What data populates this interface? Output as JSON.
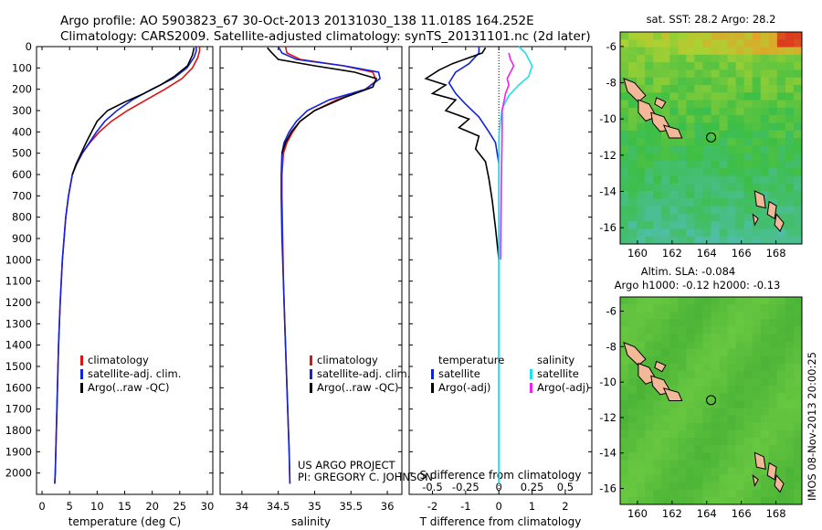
{
  "header": {
    "line1": "Argo profile: AO 5903823_67 30-Oct-2013 20131030_138 11.018S 164.252E",
    "line2": "Climatology: CARS2009. Satellite-adjusted climatology: synTS_20131101.nc (2d later)"
  },
  "colors": {
    "climatology": "#dd1111",
    "satellite": "#1122dd",
    "argo": "#000000",
    "sat_salinity": "#22ddee",
    "argo_salinity": "#ee22ee"
  },
  "chart_data": [
    {
      "type": "line",
      "name": "temperature-panel",
      "xlabel": "temperature (deg C)",
      "xlim": [
        -1,
        31
      ],
      "ylim": [
        2100,
        0
      ],
      "xticks": [
        "0",
        "5",
        "10",
        "15",
        "20",
        "25",
        "30"
      ],
      "yticks": [
        "0",
        "100",
        "200",
        "300",
        "400",
        "500",
        "600",
        "700",
        "800",
        "900",
        "1000",
        "1100",
        "1200",
        "1300",
        "1400",
        "1500",
        "1600",
        "1700",
        "1800",
        "1900",
        "2000"
      ],
      "legend": [
        "climatology",
        "satellite-adj. clim.",
        "Argo(..raw -QC)"
      ],
      "legend_position": "lower-right",
      "series": [
        {
          "name": "climatology",
          "color": "#dd1111",
          "x": [
            28.6,
            28.6,
            28.3,
            27.3,
            25.4,
            22.3,
            18.9,
            15.5,
            12.6,
            10.4,
            8.7,
            7.3,
            6.3,
            5.5,
            4.8,
            4.3,
            3.7,
            3.3,
            3.0,
            2.8,
            2.6,
            2.5,
            2.4,
            2.3
          ],
          "y": [
            0,
            20,
            50,
            100,
            150,
            200,
            250,
            300,
            350,
            400,
            450,
            500,
            550,
            600,
            700,
            800,
            1000,
            1200,
            1400,
            1600,
            1800,
            1900,
            2000,
            2050
          ]
        },
        {
          "name": "satellite-adj. clim.",
          "color": "#1122dd",
          "x": [
            28.0,
            28.0,
            27.6,
            26.3,
            23.8,
            19.9,
            16.4,
            13.6,
            11.4,
            9.9,
            8.6,
            7.3,
            6.3,
            5.5,
            4.8,
            4.3,
            3.7,
            3.3,
            3.0,
            2.8,
            2.6,
            2.5,
            2.4,
            2.3
          ],
          "y": [
            0,
            20,
            50,
            100,
            150,
            200,
            250,
            300,
            350,
            400,
            450,
            500,
            550,
            600,
            700,
            800,
            1000,
            1200,
            1400,
            1600,
            1800,
            1900,
            2000,
            2050
          ]
        },
        {
          "name": "Argo(..raw -QC)",
          "color": "#000000",
          "x": [
            27.6,
            27.3,
            26.4,
            24.0,
            21.5,
            18.5,
            15.0,
            11.9,
            10.0,
            9.0,
            8.0,
            7.1,
            6.2,
            5.5
          ],
          "y": [
            5,
            40,
            90,
            140,
            180,
            220,
            260,
            300,
            350,
            400,
            450,
            500,
            550,
            600
          ]
        }
      ]
    },
    {
      "type": "line",
      "name": "salinity-panel",
      "xlabel": "salinity",
      "xlim": [
        33.7,
        36.2
      ],
      "ylim": [
        2100,
        0
      ],
      "xticks": [
        "34",
        "34.5",
        "35",
        "35.5",
        "36"
      ],
      "legend": [
        "climatology",
        "satellite-adj. clim.",
        "Argo(..raw -QC)"
      ],
      "legend_position": "lower-right",
      "annotation": [
        "US ARGO PROJECT",
        "PI: GREGORY C. JOHNSON"
      ],
      "series": [
        {
          "name": "climatology",
          "color": "#dd1111",
          "x": [
            34.6,
            34.62,
            34.8,
            35.4,
            35.8,
            35.85,
            35.7,
            35.3,
            35.0,
            34.8,
            34.7,
            34.62,
            34.57,
            34.55,
            34.55,
            34.56,
            34.57,
            34.59,
            34.61,
            34.63,
            34.65,
            34.66
          ],
          "y": [
            0,
            30,
            60,
            90,
            120,
            160,
            200,
            250,
            300,
            350,
            400,
            450,
            500,
            600,
            700,
            900,
            1100,
            1300,
            1500,
            1700,
            1900,
            2050
          ]
        },
        {
          "name": "satellite-adj. clim.",
          "color": "#1122dd",
          "x": [
            34.5,
            34.55,
            34.75,
            35.4,
            35.88,
            35.9,
            35.7,
            35.2,
            34.9,
            34.75,
            34.65,
            34.58,
            34.55,
            34.54,
            34.54,
            34.55,
            34.57,
            34.59,
            34.61,
            34.63,
            34.65,
            34.66
          ],
          "y": [
            0,
            30,
            60,
            90,
            120,
            150,
            200,
            250,
            300,
            350,
            400,
            450,
            500,
            600,
            700,
            900,
            1100,
            1300,
            1500,
            1700,
            1900,
            2050
          ]
        },
        {
          "name": "Argo(..raw -QC)",
          "color": "#000000",
          "x": [
            34.35,
            34.4,
            34.5,
            35.0,
            35.55,
            35.85,
            35.8,
            35.4,
            35.0,
            34.8,
            34.68,
            34.6,
            34.55
          ],
          "y": [
            5,
            25,
            60,
            90,
            120,
            150,
            190,
            240,
            300,
            350,
            400,
            450,
            500
          ]
        }
      ]
    },
    {
      "type": "line",
      "name": "difference-panel",
      "xlabel": "T difference from climatology",
      "top_axis_label": "S difference from climatology",
      "xlim": [
        -2.7,
        2.8
      ],
      "ylim": [
        2100,
        0
      ],
      "xticks": [
        "-2",
        "-1",
        "0",
        "1",
        "2"
      ],
      "top_ticks": [
        "-0.5",
        "-0.25",
        "0",
        "0.25",
        "0.5"
      ],
      "legend": [
        "temperature",
        "satellite",
        "Argo(-adj)",
        "salinity",
        "satellite",
        "Argo(-adj)"
      ],
      "series": [
        {
          "name": "T satellite",
          "color": "#1122dd",
          "x": [
            -0.6,
            -0.6,
            -0.9,
            -1.3,
            -1.5,
            -1.3,
            -1.0,
            -0.6,
            -0.3,
            -0.1,
            0.0,
            0.0,
            0.0,
            0.0
          ],
          "y": [
            0,
            30,
            80,
            120,
            170,
            220,
            270,
            330,
            400,
            450,
            550,
            700,
            1100,
            2050
          ]
        },
        {
          "name": "T Argo(-adj)",
          "color": "#000000",
          "x": [
            -0.4,
            -0.5,
            -1.4,
            -1.8,
            -2.2,
            -1.6,
            -2.0,
            -1.3,
            -1.6,
            -0.9,
            -1.2,
            -0.6,
            -0.7,
            -0.4,
            -0.3,
            -0.2,
            -0.1,
            0.0
          ],
          "y": [
            5,
            30,
            80,
            110,
            150,
            180,
            220,
            250,
            300,
            340,
            380,
            420,
            480,
            540,
            620,
            720,
            850,
            1000
          ]
        },
        {
          "name": "S satellite",
          "color": "#22ddee",
          "x": [
            0.6,
            0.8,
            1.0,
            0.9,
            0.6,
            0.3,
            0.1,
            0.05,
            0.0,
            0.0,
            0.0,
            0.0
          ],
          "y": [
            0,
            30,
            90,
            140,
            180,
            230,
            290,
            350,
            420,
            600,
            1100,
            2050
          ]
        },
        {
          "name": "S Argo(-adj)",
          "color": "#ee22ee",
          "x": [
            0.3,
            0.35,
            0.45,
            0.35,
            0.25,
            0.3,
            0.2,
            0.1,
            0.1,
            0.08,
            0.06,
            0.05
          ],
          "y": [
            30,
            60,
            90,
            120,
            150,
            180,
            220,
            300,
            400,
            600,
            800,
            1000
          ]
        }
      ]
    }
  ],
  "maps": [
    {
      "title": "sat. SST: 28.2  Argo: 28.2",
      "kind": "sst",
      "xticks": [
        "160",
        "162",
        "164",
        "166",
        "168"
      ],
      "yticks": [
        "-6",
        "-8",
        "-10",
        "-12",
        "-14",
        "-16"
      ],
      "marker": {
        "lon": 164.252,
        "lat": -11.018
      }
    },
    {
      "title": "Altim. SLA: -0.084",
      "subtitle": "Argo h1000: -0.12  h2000: -0.13",
      "kind": "sla",
      "xticks": [
        "160",
        "162",
        "164",
        "166",
        "168"
      ],
      "yticks": [
        "-6",
        "-8",
        "-10",
        "-12",
        "-14",
        "-16"
      ],
      "marker": {
        "lon": 164.252,
        "lat": -11.018
      }
    }
  ],
  "credit": "IMOS 08-Nov-2013 20:00:25"
}
